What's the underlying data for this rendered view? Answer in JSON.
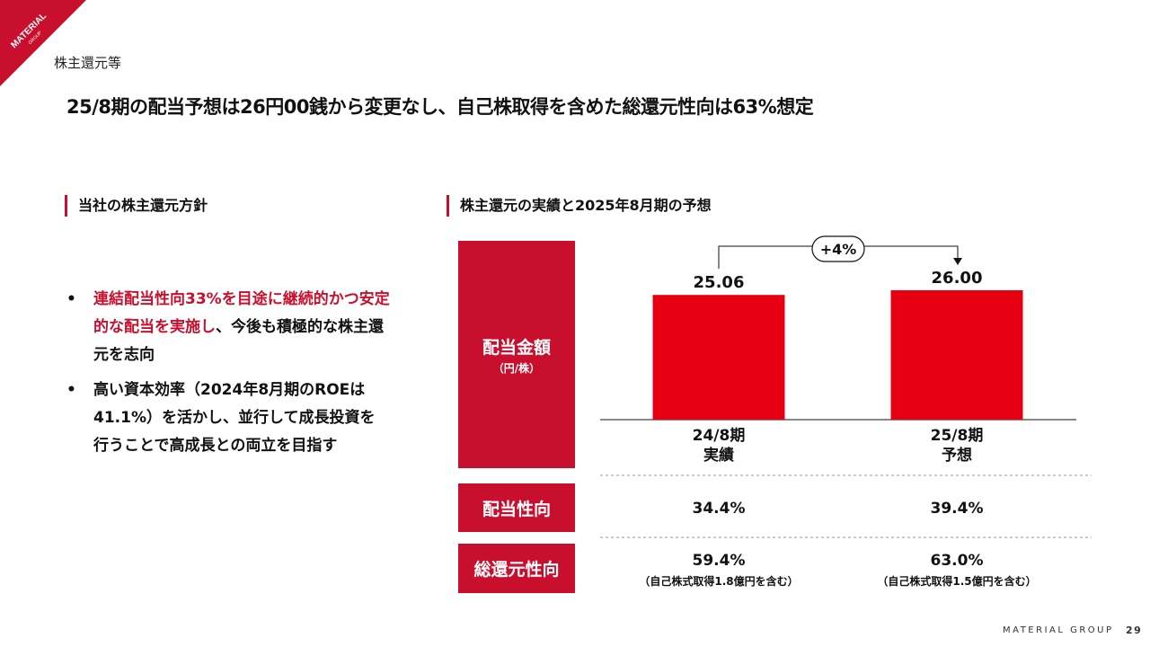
{
  "brand": {
    "logo_text": "MATERIAL",
    "logo_subtext": "GROUP",
    "footer": "MATERIAL GROUP",
    "accent_color": "#c8102e",
    "bar_color": "#e60012"
  },
  "page": {
    "section_label": "株主還元等",
    "headline": "25/8期の配当予想は26円00銭から変更なし、自己株取得を含めた総還元性向は63%想定",
    "page_number": "29"
  },
  "left": {
    "heading": "当社の株主還元方針",
    "bullets": [
      {
        "marker": "•",
        "highlight": "連結配当性向33%を目途に継続的かつ安定的な配当を実施し",
        "rest": "、今後も積極的な株主還元を志向"
      },
      {
        "marker": "•",
        "highlight": "",
        "rest": "高い資本効率（2024年8月期のROEは41.1%）を活かし、並行して成長投資を行うことで高成長との両立を目指す"
      }
    ]
  },
  "right": {
    "heading": "株主還元の実績と2025年8月期の予想",
    "dividend_box": {
      "title": "配当金額",
      "unit": "（円/株）"
    },
    "payout_label": "配当性向",
    "total_label": "総還元性向"
  },
  "chart_data": {
    "type": "bar",
    "categories": [
      "24/8期\n実績",
      "25/8期\n予想"
    ],
    "values": [
      25.06,
      26.0
    ],
    "value_labels": [
      "25.06",
      "26.00"
    ],
    "ylim": [
      0,
      26.0
    ],
    "annotation": "+4%",
    "grid": false
  },
  "rows": {
    "payout": [
      "34.4%",
      "39.4%"
    ],
    "total": [
      "59.4%",
      "63.0%"
    ],
    "total_notes": [
      "（自己株式取得1.8億円を含む）",
      "（自己株式取得1.5億円を含む）"
    ]
  }
}
